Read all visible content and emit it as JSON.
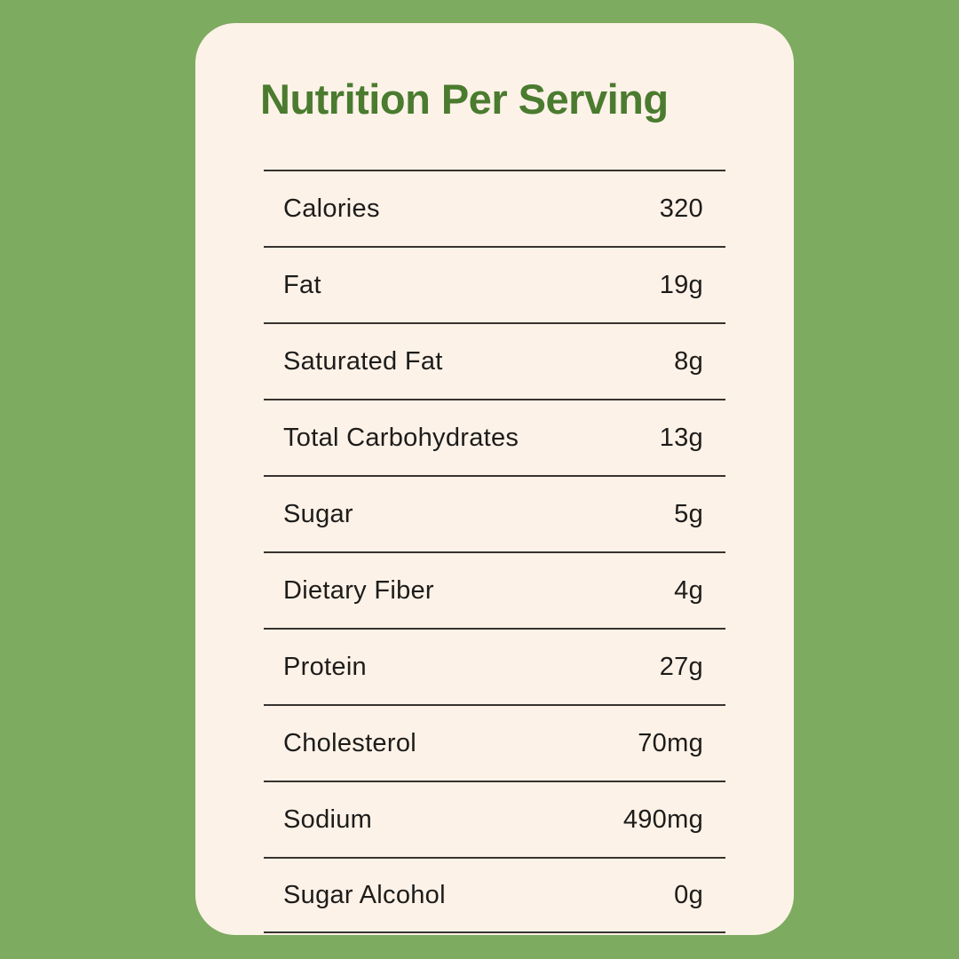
{
  "theme": {
    "bg-green": "#7DAB60",
    "card-cream": "#FDF2E8",
    "title-green": "#4A7B2F",
    "text-dark": "#1D1C1A",
    "divider-dark": "#37332E"
  },
  "card": {
    "title": "Nutrition Per Serving"
  },
  "table": {
    "rows": [
      {
        "label": "Calories",
        "value": "320"
      },
      {
        "label": "Fat",
        "value": "19g"
      },
      {
        "label": "Saturated Fat",
        "value": "8g"
      },
      {
        "label": "Total Carbohydrates",
        "value": "13g"
      },
      {
        "label": "Sugar",
        "value": "5g"
      },
      {
        "label": "Dietary Fiber",
        "value": "4g"
      },
      {
        "label": "Protein",
        "value": "27g"
      },
      {
        "label": "Cholesterol",
        "value": "70mg"
      },
      {
        "label": "Sodium",
        "value": "490mg"
      },
      {
        "label": "Sugar Alcohol",
        "value": "0g"
      }
    ]
  }
}
